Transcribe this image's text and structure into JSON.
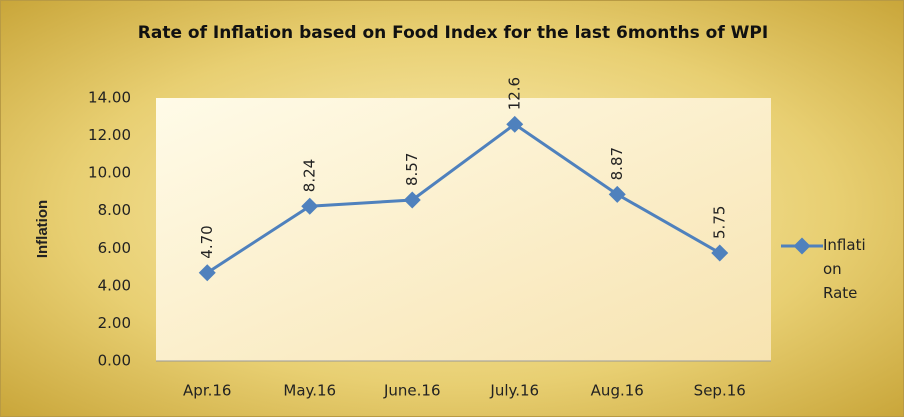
{
  "chart_data": {
    "type": "line",
    "title": "Rate of Inflation based on Food Index for the last 6months of WPI",
    "y_label": "Inflation",
    "categories": [
      "Apr.16",
      "May.16",
      "June.16",
      "July.16",
      "Aug.16",
      "Sep.16"
    ],
    "series": [
      {
        "name": "Inflation Rate",
        "color": "#4f81bd",
        "values": [
          4.7,
          8.24,
          8.57,
          12.6,
          8.87,
          5.75
        ],
        "value_labels": [
          "4.70",
          "8.24",
          "8.57",
          "12.6",
          "8.87",
          "5.75"
        ]
      }
    ],
    "ylim": [
      0,
      14
    ],
    "yticks": [
      {
        "value": 0,
        "label": "0.00"
      },
      {
        "value": 2,
        "label": "2.00"
      },
      {
        "value": 4,
        "label": "4.00"
      },
      {
        "value": 6,
        "label": "6.00"
      },
      {
        "value": 8,
        "label": "8.00"
      },
      {
        "value": 10,
        "label": "10.00"
      },
      {
        "value": 12,
        "label": "12.00"
      },
      {
        "value": 14,
        "label": "14.00"
      }
    ],
    "legend": "right"
  }
}
